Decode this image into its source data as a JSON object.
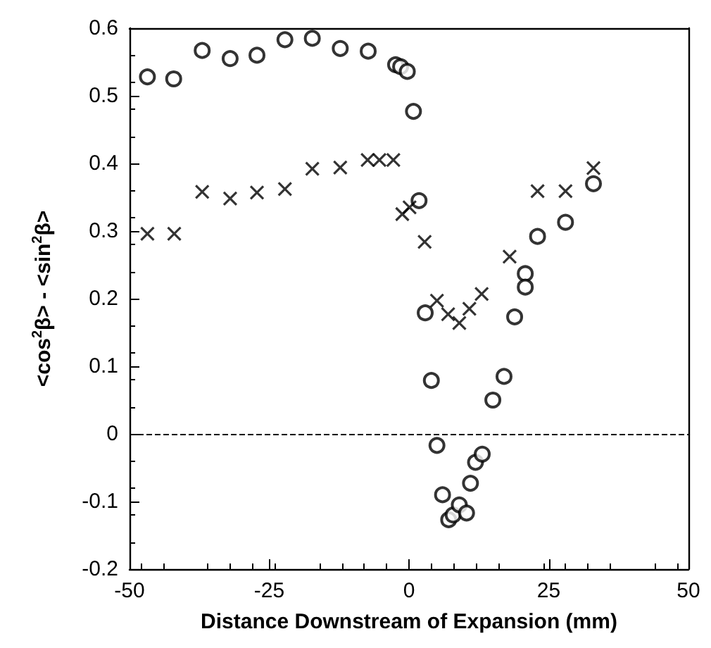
{
  "chart_data": {
    "type": "scatter",
    "xlabel": "Distance Downstream of Expansion (mm)",
    "ylabel": "<cos$^{2}$β> - <sin$^{2}$β>",
    "xlim": [
      -50,
      50
    ],
    "xticks": [
      -50,
      -25,
      0,
      25,
      50
    ],
    "ylim": [
      -0.2,
      0.6
    ],
    "yticks": [
      -0.2,
      -0.1,
      0,
      0.1,
      0.2,
      0.3,
      0.4,
      0.5,
      0.6
    ],
    "ref_lines": [
      {
        "axis": "y",
        "value": 0,
        "color": "#000000",
        "line_style": "dashed"
      }
    ],
    "series": [
      {
        "color": "#000000",
        "marker": "circle",
        "x": [
          -46.8,
          -42.1,
          -37,
          -32,
          -27.2,
          -22.2,
          -17.3,
          -12.3,
          -7.3,
          -2.4,
          -1.5,
          -0.3,
          0.8,
          1.8,
          2.9,
          4,
          5,
          6,
          7.1,
          7.9,
          9,
          10.3,
          11,
          11.9,
          13.1,
          15,
          17,
          18.9,
          20.8,
          20.8,
          23,
          28,
          33
        ],
        "values": [
          0.528,
          0.525,
          0.567,
          0.555,
          0.56,
          0.583,
          0.585,
          0.57,
          0.566,
          0.546,
          0.543,
          0.536,
          0.477,
          0.345,
          0.179,
          0.079,
          -0.017,
          -0.09,
          -0.127,
          -0.12,
          -0.105,
          -0.117,
          -0.073,
          -0.042,
          -0.03,
          0.05,
          0.085,
          0.173,
          0.237,
          0.217,
          0.292,
          0.313,
          0.37
        ]
      },
      {
        "color": "#000000",
        "marker": "cross",
        "x": [
          -46.8,
          -42,
          -37,
          -32,
          -27.2,
          -22.2,
          -17.3,
          -12.3,
          -7.4,
          -5.3,
          -2.8,
          -1.2,
          0.1,
          2.8,
          5,
          7,
          9,
          10.8,
          13,
          18,
          23,
          28,
          33
        ],
        "values": [
          0.296,
          0.296,
          0.358,
          0.348,
          0.357,
          0.362,
          0.392,
          0.394,
          0.405,
          0.405,
          0.405,
          0.325,
          0.335,
          0.284,
          0.197,
          0.177,
          0.164,
          0.185,
          0.207,
          0.262,
          0.359,
          0.359,
          0.393
        ]
      }
    ]
  }
}
